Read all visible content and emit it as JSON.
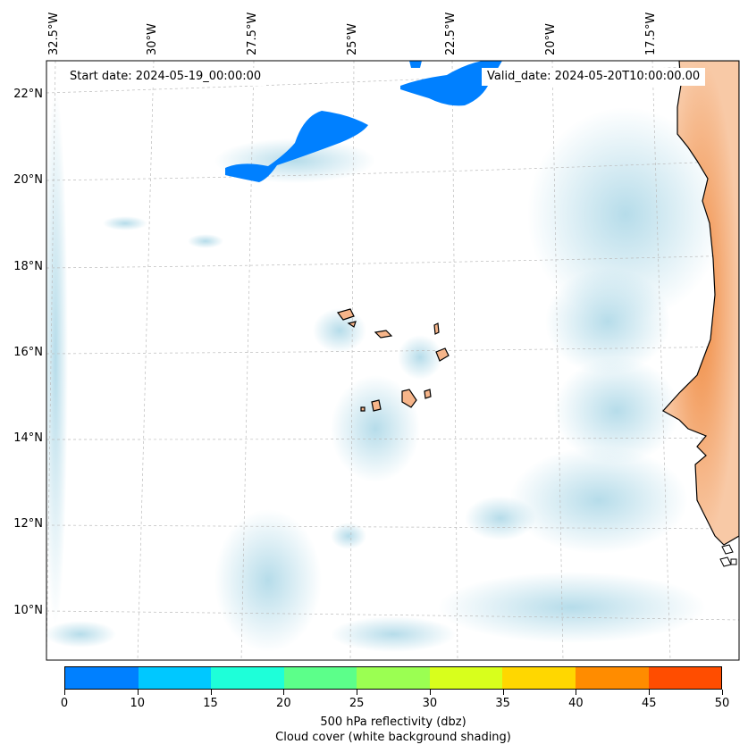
{
  "header": {
    "start_date": "Start date: 2024-05-19_00:00:00",
    "valid_date": "Valid_date: 2024-05-20T10:00:00.00"
  },
  "map": {
    "lat_labels": [
      "22°N",
      "20°N",
      "18°N",
      "16°N",
      "14°N",
      "12°N",
      "10°N"
    ],
    "lon_labels": [
      "32.5°W",
      "30°W",
      "27.5°W",
      "25°W",
      "22.5°W",
      "20°W",
      "17.5°W"
    ],
    "colors": {
      "land": "#f4a26a",
      "cloud": "#a9d6e6",
      "reflectivity_low": "#0080ff"
    }
  },
  "colorbar": {
    "ticks": [
      "0",
      "10",
      "15",
      "20",
      "25",
      "30",
      "35",
      "40",
      "45",
      "50"
    ],
    "colors": [
      "#0080ff",
      "#00c8ff",
      "#1effd9",
      "#5cff8a",
      "#9bff52",
      "#d8ff1c",
      "#ffd700",
      "#ff8c00",
      "#ff4d00"
    ],
    "label_line1": "500 hPa reflectivity (dbz)",
    "label_line2": "Cloud cover (white background shading)"
  }
}
